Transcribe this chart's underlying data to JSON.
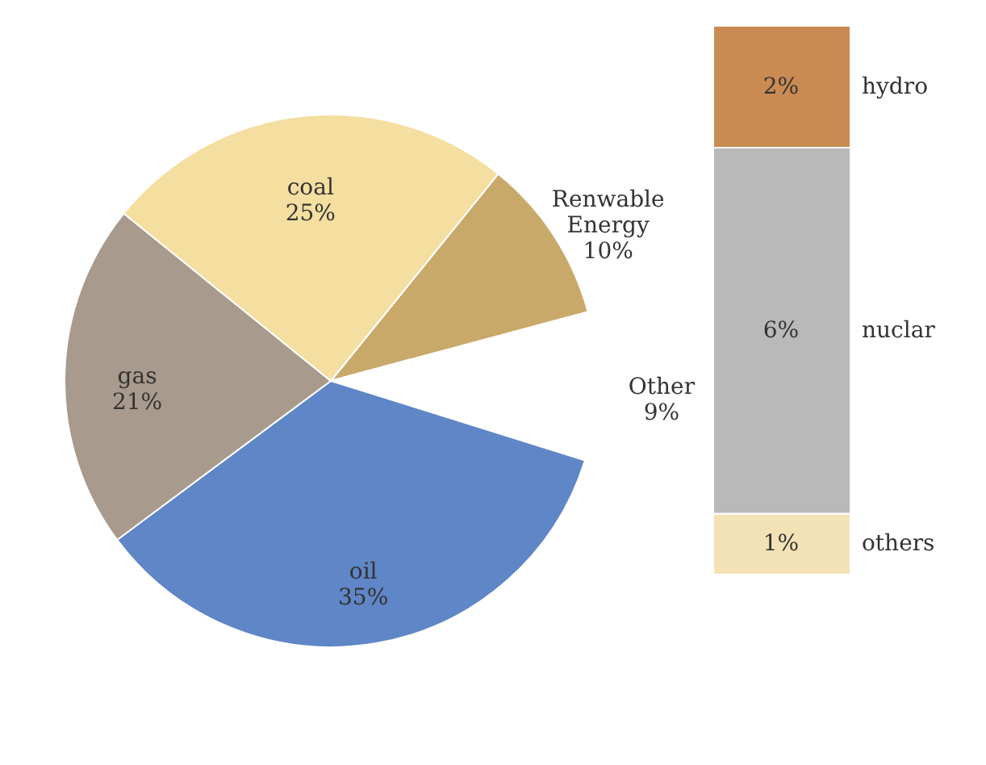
{
  "chart_data": [
    {
      "type": "pie",
      "categories": [
        "Renwable Energy",
        "Other",
        "oil",
        "gas",
        "coal"
      ],
      "values": [
        10,
        9,
        35,
        21,
        25
      ],
      "value_labels": [
        "10%",
        "9%",
        "35%",
        "21%",
        "25%"
      ],
      "colors": [
        "#c9a96a",
        "#ffffff",
        "#5f86c6",
        "#a89a8c",
        "#f4dea0"
      ],
      "legend": false
    },
    {
      "type": "bar",
      "stacked": true,
      "categories": [
        null
      ],
      "series": [
        {
          "name": "others",
          "color": "#f3e2b6",
          "values": [
            1
          ],
          "value_labels": [
            "1%"
          ]
        },
        {
          "name": "nuclar",
          "color": "#b9b9b9",
          "values": [
            6
          ],
          "value_labels": [
            "6%"
          ]
        },
        {
          "name": "hydro",
          "color": "#c98b52",
          "values": [
            2
          ],
          "value_labels": [
            "2%"
          ]
        }
      ],
      "legend": false,
      "tick_labels": false
    }
  ]
}
